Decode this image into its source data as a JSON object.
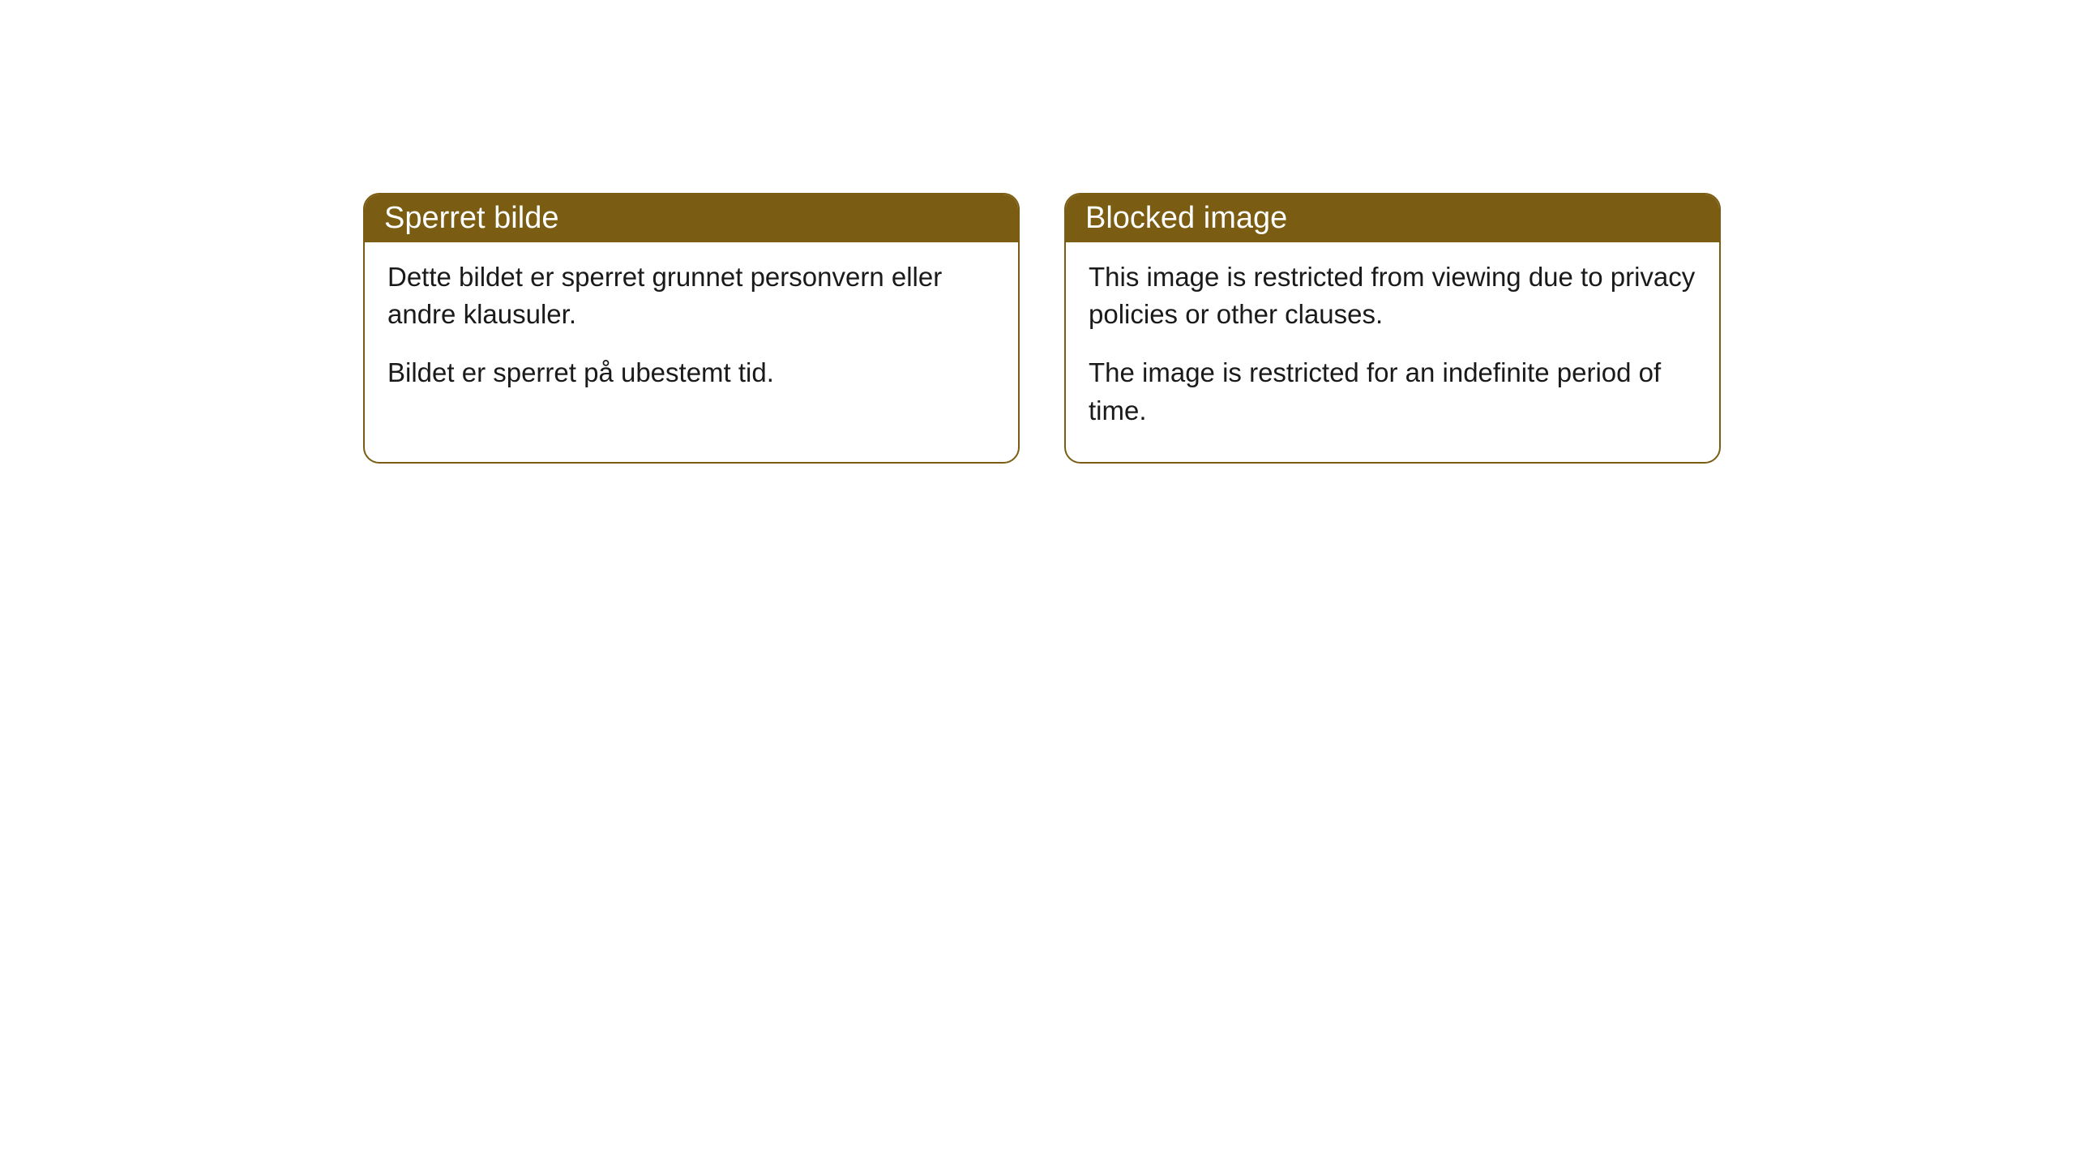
{
  "cards": [
    {
      "title": "Sperret bilde",
      "paragraph1": "Dette bildet er sperret grunnet personvern eller andre klausuler.",
      "paragraph2": "Bildet er sperret på ubestemt tid."
    },
    {
      "title": "Blocked image",
      "paragraph1": "This image is restricted from viewing due to privacy policies or other clauses.",
      "paragraph2": "The image is restricted for an indefinite period of time."
    }
  ],
  "styling": {
    "header_bg_color": "#7a5c12",
    "header_text_color": "#ffffff",
    "border_color": "#7a5c12",
    "body_text_color": "#1a1a1a",
    "card_bg_color": "#ffffff",
    "page_bg_color": "#ffffff",
    "border_radius": 20,
    "header_fontsize": 38,
    "body_fontsize": 33
  }
}
